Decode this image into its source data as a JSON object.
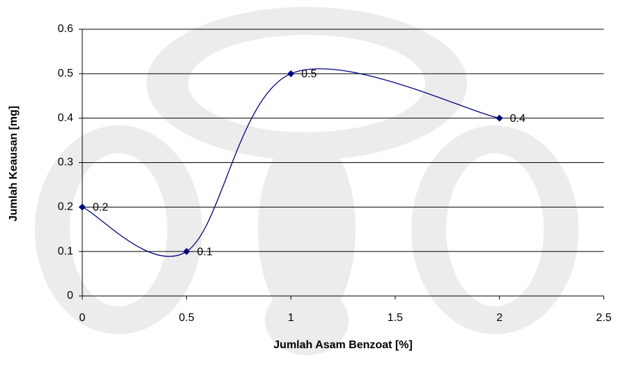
{
  "chart_data": {
    "type": "scatter-smooth",
    "x_label": "Jumlah Asam Benzoat [%]",
    "y_label": "Jumlah Keausan [mg]",
    "x": [
      0,
      0.5,
      1,
      2
    ],
    "series": [
      {
        "color": "#000080",
        "values": [
          0.2,
          0.1,
          0.5,
          0.4
        ]
      }
    ],
    "xlim": [
      0,
      2.5
    ],
    "xticks": [
      0,
      0.5,
      1,
      1.5,
      2,
      2.5
    ],
    "ylim": [
      0,
      0.6
    ],
    "yticks": [
      0,
      0.1,
      0.2,
      0.3,
      0.4,
      0.5,
      0.6
    ],
    "grid": true,
    "data_labels": true
  }
}
